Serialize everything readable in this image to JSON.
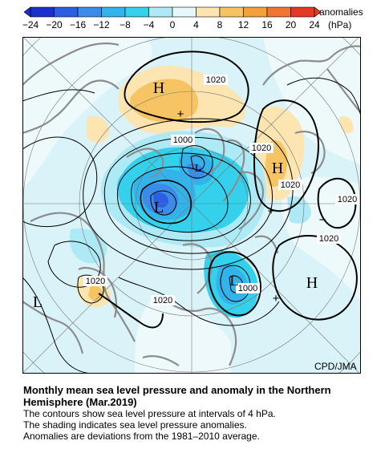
{
  "legend": {
    "title": "anomalies",
    "unit": "(hPa)",
    "ticks": [
      "−24",
      "−20",
      "−16",
      "−12",
      "−8",
      "−4",
      "0",
      "4",
      "8",
      "12",
      "16",
      "20",
      "24"
    ],
    "colors": [
      "#1a2fcc",
      "#2b5fe0",
      "#3a8ce8",
      "#34b2ea",
      "#34d0ec",
      "#aeeaf6",
      "#e6f8fb",
      "#fce5b0",
      "#f6c463",
      "#f3a23b",
      "#ee7630",
      "#e23a26"
    ]
  },
  "map": {
    "high_label": "H",
    "low_label": "L",
    "isobar_label": "1020",
    "isobar_label_low": "1000",
    "plus_mark": "+",
    "minus_mark": "−",
    "credit": "CPD/JMA"
  },
  "caption": {
    "title_line1": "Monthly mean sea level pressure and anomaly in the Northern",
    "title_line2": "Hemisphere (Mar.2019)",
    "line1": "The contours show sea level pressure at intervals of 4 hPa.",
    "line2": "The shading indicates sea level pressure anomalies.",
    "line3": "Anomalies are deviations from the 1981–2010 average."
  }
}
